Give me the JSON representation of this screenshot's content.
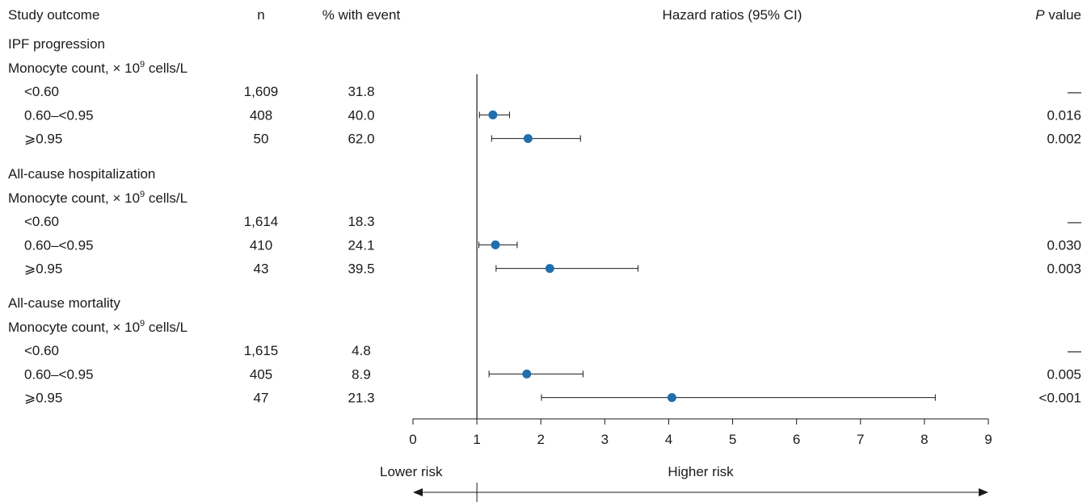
{
  "headers": {
    "study_outcome": "Study outcome",
    "n": "n",
    "pct_event": "% with event",
    "hazard_ratios": "Hazard ratios (95% CI)",
    "p_value_italic": "P",
    "p_value_rest": " value"
  },
  "subheader": {
    "prefix": "Monocyte count, × 10",
    "superscript": "9",
    "suffix": " cells/L"
  },
  "risk_labels": {
    "lower": "Lower risk",
    "higher": "Higher risk"
  },
  "colors": {
    "marker": "#1f6eae",
    "line": "#1a1a1a"
  },
  "chart_data": {
    "type": "forest",
    "xlim": [
      0,
      9
    ],
    "xticks": [
      0,
      1,
      2,
      3,
      4,
      5,
      6,
      7,
      8,
      9
    ],
    "reference_line": 1,
    "groups": [
      {
        "title": "IPF progression",
        "rows": [
          {
            "label": "<0.60",
            "n": "1,609",
            "pct": "31.8",
            "hr": null,
            "lo": null,
            "hi": null,
            "p": "—"
          },
          {
            "label": "0.60–<0.95",
            "n": "408",
            "pct": "40.0",
            "hr": 1.25,
            "lo": 1.04,
            "hi": 1.51,
            "p": "0.016"
          },
          {
            "label": "⩾0.95",
            "n": "50",
            "pct": "62.0",
            "hr": 1.8,
            "lo": 1.23,
            "hi": 2.62,
            "p": "0.002"
          }
        ]
      },
      {
        "title": "All-cause hospitalization",
        "rows": [
          {
            "label": "<0.60",
            "n": "1,614",
            "pct": "18.3",
            "hr": null,
            "lo": null,
            "hi": null,
            "p": "—"
          },
          {
            "label": "0.60–<0.95",
            "n": "410",
            "pct": "24.1",
            "hr": 1.29,
            "lo": 1.03,
            "hi": 1.63,
            "p": "0.030"
          },
          {
            "label": "⩾0.95",
            "n": "43",
            "pct": "39.5",
            "hr": 2.14,
            "lo": 1.3,
            "hi": 3.52,
            "p": "0.003"
          }
        ]
      },
      {
        "title": "All-cause mortality",
        "rows": [
          {
            "label": "<0.60",
            "n": "1,615",
            "pct": "4.8",
            "hr": null,
            "lo": null,
            "hi": null,
            "p": "—"
          },
          {
            "label": "0.60–<0.95",
            "n": "405",
            "pct": "8.9",
            "hr": 1.78,
            "lo": 1.19,
            "hi": 2.66,
            "p": "0.005"
          },
          {
            "label": "⩾0.95",
            "n": "47",
            "pct": "21.3",
            "hr": 4.05,
            "lo": 2.01,
            "hi": 8.17,
            "p": "<0.001"
          }
        ]
      }
    ]
  }
}
